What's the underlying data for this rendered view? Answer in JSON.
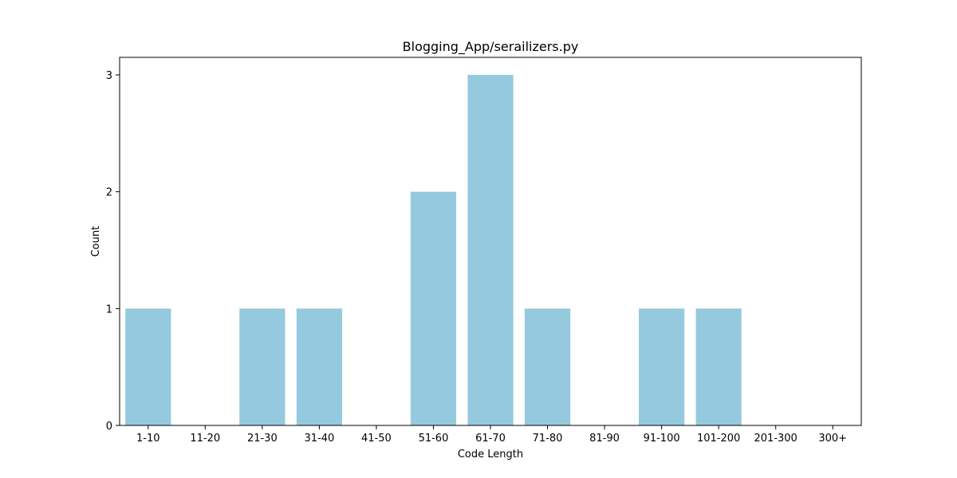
{
  "chart_data": {
    "type": "bar",
    "title": "Blogging_App/serailizers.py",
    "xlabel": "Code Length",
    "ylabel": "Count",
    "categories": [
      "1-10",
      "11-20",
      "21-30",
      "31-40",
      "41-50",
      "51-60",
      "61-70",
      "71-80",
      "81-90",
      "91-100",
      "101-200",
      "201-300",
      "300+"
    ],
    "values": [
      1,
      0,
      1,
      1,
      0,
      2,
      3,
      1,
      0,
      1,
      1,
      0,
      0
    ],
    "ylim": [
      0,
      3.15
    ],
    "yticks": [
      0,
      1,
      2,
      3
    ],
    "bar_color": "#95c9de",
    "grid": false,
    "legend": "none"
  }
}
